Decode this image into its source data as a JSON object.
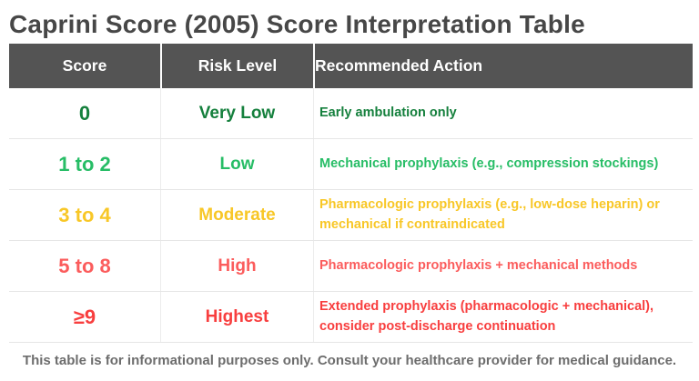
{
  "title": "Caprini Score (2005) Score Interpretation Table",
  "table": {
    "headers": {
      "score": "Score",
      "risk": "Risk Level",
      "action": "Recommended Action"
    },
    "rows": [
      {
        "score": "0",
        "risk": "Very Low",
        "action": "Early ambulation only",
        "color": "#15803d"
      },
      {
        "score": "1 to 2",
        "risk": "Low",
        "action": "Mechanical prophylaxis (e.g., compression stockings)",
        "color": "#27bd66"
      },
      {
        "score": "3 to 4",
        "risk": "Moderate",
        "action": "Pharmacologic prophylaxis (e.g., low-dose heparin) or mechanical if contraindicated",
        "color": "#f8c727"
      },
      {
        "score": "5 to 8",
        "risk": "High",
        "action": "Pharmacologic prophylaxis + mechanical methods",
        "color": "#fb5c5c"
      },
      {
        "score": "≥9",
        "risk": "Highest",
        "action": "Extended prophylaxis (pharmacologic + mechanical), consider post-discharge continuation",
        "color": "#f83e3e"
      }
    ]
  },
  "footer": "This table is for informational purposes only. Consult your healthcare provider for medical guidance.",
  "colors": {
    "header_bg": "#545454",
    "title_text": "#474747",
    "footer_text": "#6d6d6d",
    "row_divider": "#e6e6e6"
  }
}
